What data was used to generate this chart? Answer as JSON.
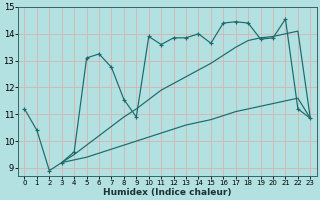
{
  "xlabel": "Humidex (Indice chaleur)",
  "bg_color": "#b3e0e0",
  "grid_color": "#d9b2b2",
  "line_color": "#1a6b6b",
  "xlim": [
    -0.5,
    23.5
  ],
  "ylim": [
    8.7,
    15.0
  ],
  "yticks": [
    9,
    10,
    11,
    12,
    13,
    14,
    15
  ],
  "xticks": [
    0,
    1,
    2,
    3,
    4,
    5,
    6,
    7,
    8,
    9,
    10,
    11,
    12,
    13,
    14,
    15,
    16,
    17,
    18,
    19,
    20,
    21,
    22,
    23
  ],
  "main_line_x": [
    0,
    1,
    2,
    3,
    4,
    5,
    6,
    7,
    8,
    9,
    10,
    11,
    12,
    13,
    14,
    15,
    16,
    17,
    18,
    19,
    20,
    21,
    22,
    23
  ],
  "main_line_y": [
    11.2,
    10.4,
    8.9,
    9.2,
    9.6,
    13.1,
    13.25,
    12.75,
    11.55,
    10.9,
    13.9,
    13.6,
    13.85,
    13.85,
    14.0,
    13.65,
    14.4,
    14.45,
    14.4,
    13.8,
    13.85,
    14.55,
    11.2,
    10.85
  ],
  "line2_x": [
    3,
    4,
    5,
    6,
    7,
    8,
    9,
    10,
    11,
    12,
    13,
    14,
    15,
    16,
    17,
    18,
    19,
    20,
    21,
    22,
    23
  ],
  "line2_y": [
    9.2,
    9.5,
    9.85,
    10.2,
    10.55,
    10.9,
    11.2,
    11.55,
    11.9,
    12.15,
    12.4,
    12.65,
    12.9,
    13.2,
    13.5,
    13.75,
    13.85,
    13.9,
    14.0,
    14.1,
    10.85
  ],
  "line3_x": [
    3,
    4,
    5,
    6,
    7,
    8,
    9,
    10,
    11,
    12,
    13,
    14,
    15,
    16,
    17,
    18,
    19,
    20,
    21,
    22,
    23
  ],
  "line3_y": [
    9.2,
    9.3,
    9.4,
    9.55,
    9.7,
    9.85,
    10.0,
    10.15,
    10.3,
    10.45,
    10.6,
    10.7,
    10.8,
    10.95,
    11.1,
    11.2,
    11.3,
    11.4,
    11.5,
    11.6,
    10.85
  ]
}
